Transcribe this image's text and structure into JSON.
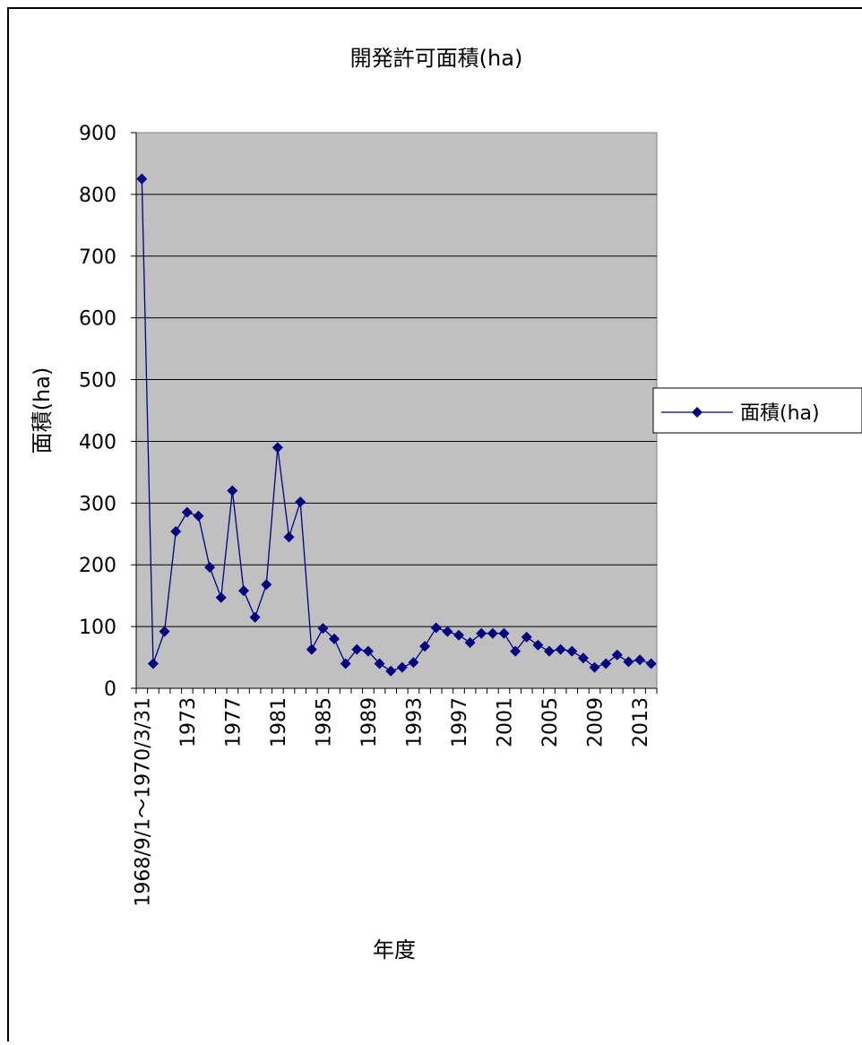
{
  "chart_data": {
    "type": "line",
    "title": "開発許可面積(ha)",
    "x_label": "年度",
    "y_label": "面積(ha)",
    "categories": [
      "1968/9/1～1970/3/31",
      null,
      null,
      null,
      "1973",
      null,
      null,
      null,
      "1977",
      null,
      null,
      null,
      "1981",
      null,
      null,
      null,
      "1985",
      null,
      null,
      null,
      "1989",
      null,
      null,
      null,
      "1993",
      null,
      null,
      null,
      "1997",
      null,
      null,
      null,
      "2001",
      null,
      null,
      null,
      "2005",
      null,
      null,
      null,
      "2009",
      null,
      null,
      null,
      "2013",
      null
    ],
    "series": [
      {
        "name": "面積(ha)",
        "color": "#000080",
        "values": [
          825,
          40,
          92,
          254,
          285,
          279,
          196,
          147,
          320,
          158,
          115,
          168,
          390,
          245,
          302,
          63,
          97,
          80,
          40,
          63,
          60,
          40,
          28,
          34,
          42,
          68,
          98,
          92,
          86,
          74,
          89,
          89,
          89,
          60,
          83,
          70,
          60,
          63,
          60,
          49,
          34,
          40,
          54,
          43,
          46,
          40
        ]
      }
    ],
    "ylim": [
      0,
      900
    ],
    "yticks": [
      0,
      100,
      200,
      300,
      400,
      500,
      600,
      700,
      800,
      900
    ],
    "grid": true,
    "legend": "right"
  }
}
